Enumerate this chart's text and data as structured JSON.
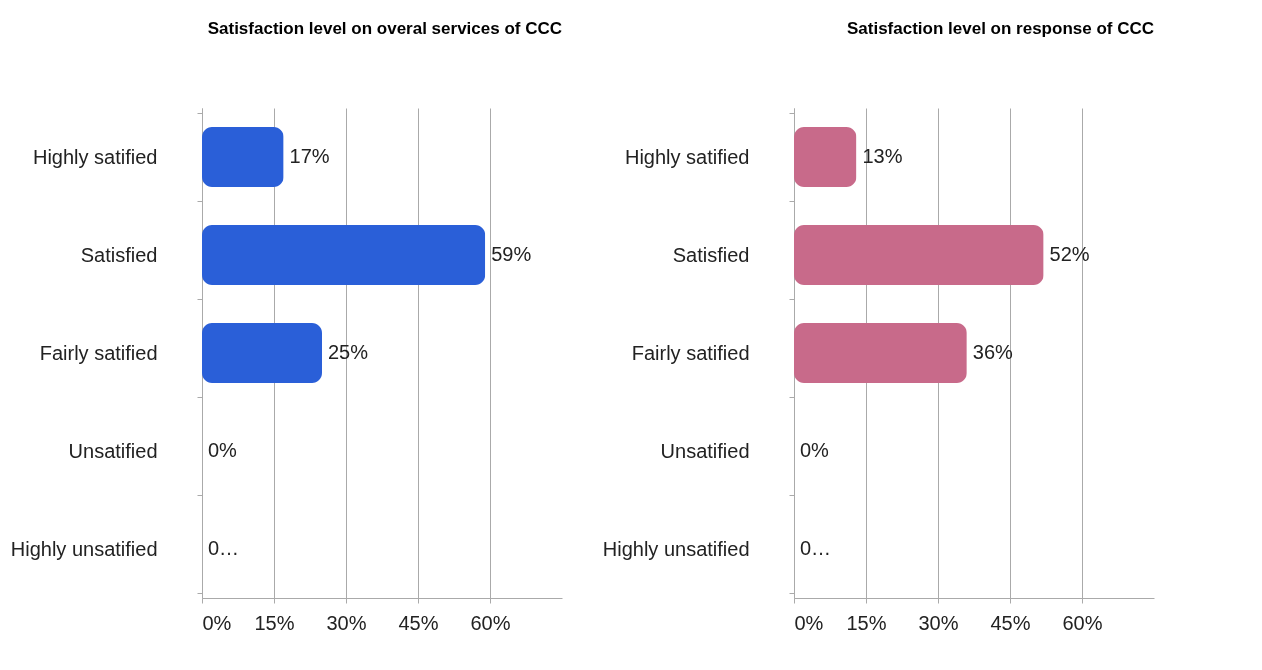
{
  "chart_data": [
    {
      "type": "bar",
      "orientation": "horizontal",
      "title": "Satisfaction level on overal services of CCC",
      "categories": [
        "Highly satified",
        "Satisfied",
        "Fairly satified",
        "Unsatified",
        "Highly unsatified"
      ],
      "values": [
        17,
        59,
        25,
        0,
        0
      ],
      "value_labels": [
        "17%",
        "59%",
        "25%",
        "0%",
        "0…"
      ],
      "color": "#2a5fd8",
      "xlim": [
        0,
        75
      ],
      "xticks": [
        {
          "value": 0,
          "label": "0%"
        },
        {
          "value": 15,
          "label": "15%"
        },
        {
          "value": 30,
          "label": "30%"
        },
        {
          "value": 45,
          "label": "45%"
        },
        {
          "value": 60,
          "label": "60%"
        }
      ],
      "grid": "x"
    },
    {
      "type": "bar",
      "orientation": "horizontal",
      "title": "Satisfaction level on response of CCC",
      "categories": [
        "Highly satified",
        "Satisfied",
        "Fairly satified",
        "Unsatified",
        "Highly unsatified"
      ],
      "values": [
        13,
        52,
        36,
        0,
        0
      ],
      "value_labels": [
        "13%",
        "52%",
        "36%",
        "0%",
        "0…"
      ],
      "color": "#c86a8a",
      "xlim": [
        0,
        75
      ],
      "xticks": [
        {
          "value": 0,
          "label": "0%"
        },
        {
          "value": 15,
          "label": "15%"
        },
        {
          "value": 30,
          "label": "30%"
        },
        {
          "value": 45,
          "label": "45%"
        },
        {
          "value": 60,
          "label": "60%"
        }
      ],
      "grid": "x"
    }
  ]
}
